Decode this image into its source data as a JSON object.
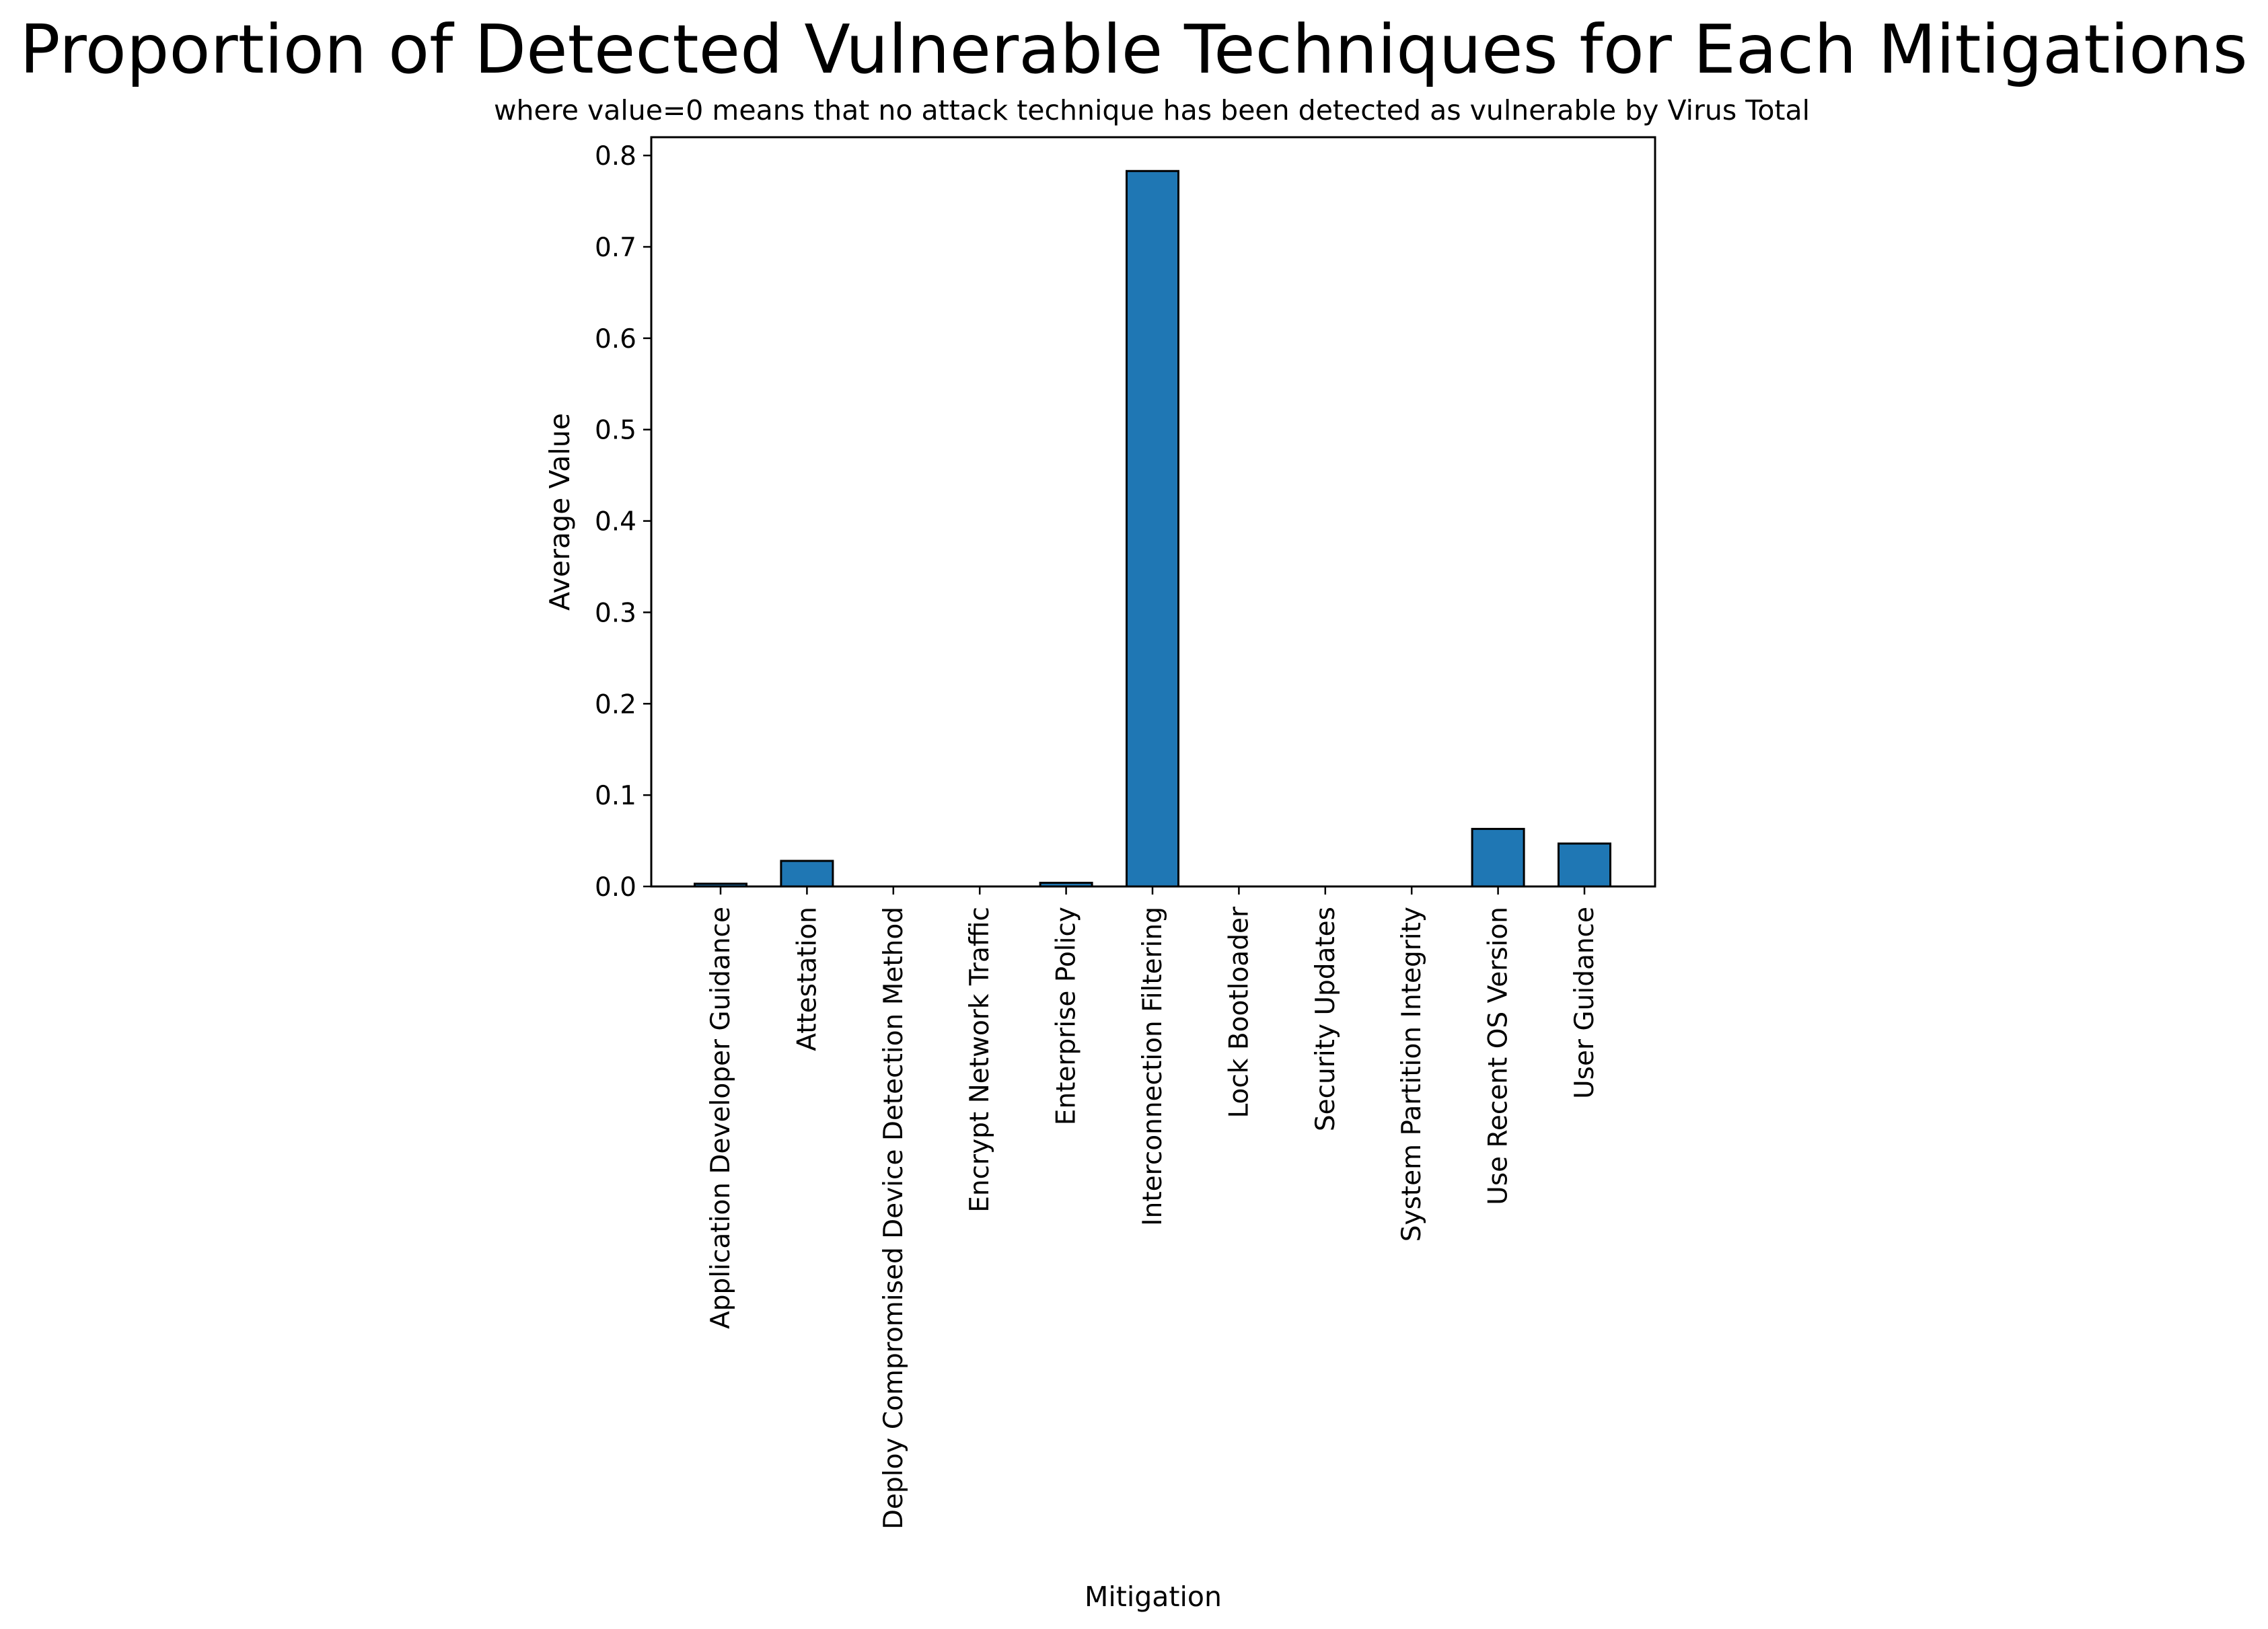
{
  "chart_data": {
    "type": "bar",
    "title": "Proportion of Detected Vulnerable Techniques for Each Mitigations",
    "subtitle": "where value=0 means that no attack technique has been detected as vulnerable by Virus Total",
    "xlabel": "Mitigation",
    "ylabel": "Average Value",
    "ylim": [
      0,
      0.82
    ],
    "yticks": [
      0.0,
      0.1,
      0.2,
      0.3,
      0.4,
      0.5,
      0.6,
      0.7,
      0.8
    ],
    "ytick_labels": [
      "0.0",
      "0.1",
      "0.2",
      "0.3",
      "0.4",
      "0.5",
      "0.6",
      "0.7",
      "0.8"
    ],
    "categories": [
      "Application Developer Guidance",
      "Attestation",
      "Deploy Compromised Device Detection Method",
      "Encrypt Network Traffic",
      "Enterprise Policy",
      "Interconnection Filtering",
      "Lock Bootloader",
      "Security Updates",
      "System Partition Integrity",
      "Use Recent OS Version",
      "User Guidance"
    ],
    "values": [
      0.003,
      0.028,
      0.0,
      0.0,
      0.004,
      0.783,
      0.0,
      0.0,
      0.0,
      0.063,
      0.047
    ],
    "bar_color": "#1f77b4",
    "edge_color": "#000000",
    "grid": false,
    "legend": "none"
  }
}
